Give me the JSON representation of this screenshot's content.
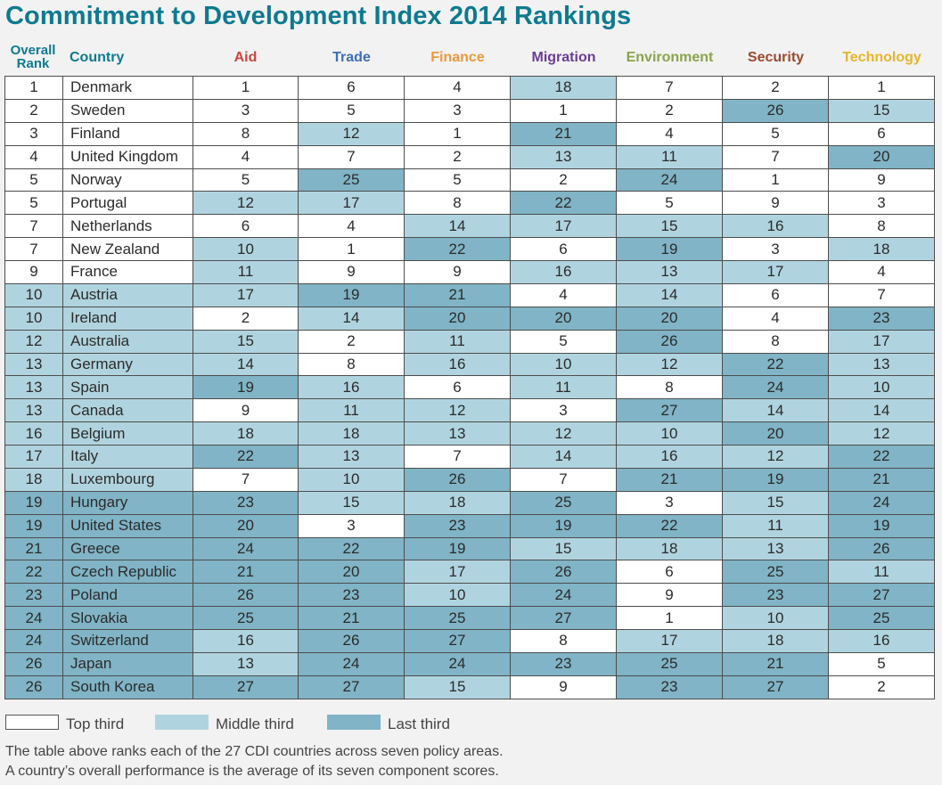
{
  "title": "Commitment to Development Index 2014 Rankings",
  "chart_data": {
    "type": "table",
    "title": "Commitment to Development Index 2014 Rankings",
    "headers": {
      "rank_line1": "Overall",
      "rank_line2": "Rank",
      "country": "Country",
      "components": [
        "Aid",
        "Trade",
        "Finance",
        "Migration",
        "Environment",
        "Security",
        "Technology"
      ]
    },
    "header_colors": [
      "#c8463a",
      "#3e6fb0",
      "#e89a3c",
      "#6a3d96",
      "#8aa44a",
      "#9a4a30",
      "#e5b52c"
    ],
    "tier_colors": {
      "top": "#ffffff",
      "middle": "#b0d4df",
      "last": "#80b4c6"
    },
    "rows": [
      {
        "rank": "1",
        "country": "Denmark",
        "scores": [
          1,
          6,
          4,
          18,
          7,
          2,
          1
        ]
      },
      {
        "rank": "2",
        "country": "Sweden",
        "scores": [
          3,
          5,
          3,
          1,
          2,
          26,
          15
        ]
      },
      {
        "rank": "3",
        "country": "Finland",
        "scores": [
          8,
          12,
          1,
          21,
          4,
          5,
          6
        ]
      },
      {
        "rank": "4",
        "country": "United Kingdom",
        "scores": [
          4,
          7,
          2,
          13,
          11,
          7,
          20
        ]
      },
      {
        "rank": "5",
        "country": "Norway",
        "scores": [
          5,
          25,
          5,
          2,
          24,
          1,
          9
        ]
      },
      {
        "rank": "5",
        "country": "Portugal",
        "scores": [
          12,
          17,
          8,
          22,
          5,
          9,
          3
        ]
      },
      {
        "rank": "7",
        "country": "Netherlands",
        "scores": [
          6,
          4,
          14,
          17,
          15,
          16,
          8
        ]
      },
      {
        "rank": "7",
        "country": "New Zealand",
        "scores": [
          10,
          1,
          22,
          6,
          19,
          3,
          18
        ]
      },
      {
        "rank": "9",
        "country": "France",
        "scores": [
          11,
          9,
          9,
          16,
          13,
          17,
          4
        ]
      },
      {
        "rank": "10",
        "country": "Austria",
        "scores": [
          17,
          19,
          21,
          4,
          14,
          6,
          7
        ]
      },
      {
        "rank": "10",
        "country": "Ireland",
        "scores": [
          2,
          14,
          20,
          20,
          20,
          4,
          23
        ]
      },
      {
        "rank": "12",
        "country": "Australia",
        "scores": [
          15,
          2,
          11,
          5,
          26,
          8,
          17
        ]
      },
      {
        "rank": "13",
        "country": "Germany",
        "scores": [
          14,
          8,
          16,
          10,
          12,
          22,
          13
        ]
      },
      {
        "rank": "13",
        "country": "Spain",
        "scores": [
          19,
          16,
          6,
          11,
          8,
          24,
          10
        ]
      },
      {
        "rank": "13",
        "country": "Canada",
        "scores": [
          9,
          11,
          12,
          3,
          27,
          14,
          14
        ]
      },
      {
        "rank": "16",
        "country": "Belgium",
        "scores": [
          18,
          18,
          13,
          12,
          10,
          20,
          12
        ]
      },
      {
        "rank": "17",
        "country": "Italy",
        "scores": [
          22,
          13,
          7,
          14,
          16,
          12,
          22
        ]
      },
      {
        "rank": "18",
        "country": "Luxembourg",
        "scores": [
          7,
          10,
          26,
          7,
          21,
          19,
          21
        ]
      },
      {
        "rank": "19",
        "country": "Hungary",
        "scores": [
          23,
          15,
          18,
          25,
          3,
          15,
          24
        ]
      },
      {
        "rank": "19",
        "country": "United States",
        "scores": [
          20,
          3,
          23,
          19,
          22,
          11,
          19
        ]
      },
      {
        "rank": "21",
        "country": "Greece",
        "scores": [
          24,
          22,
          19,
          15,
          18,
          13,
          26
        ]
      },
      {
        "rank": "22",
        "country": "Czech Republic",
        "scores": [
          21,
          20,
          17,
          26,
          6,
          25,
          11
        ]
      },
      {
        "rank": "23",
        "country": "Poland",
        "scores": [
          26,
          23,
          10,
          24,
          9,
          23,
          27
        ]
      },
      {
        "rank": "24",
        "country": "Slovakia",
        "scores": [
          25,
          21,
          25,
          27,
          1,
          10,
          25
        ]
      },
      {
        "rank": "24",
        "country": "Switzerland",
        "scores": [
          16,
          26,
          27,
          8,
          17,
          18,
          16
        ]
      },
      {
        "rank": "26",
        "country": "Japan",
        "scores": [
          13,
          24,
          24,
          23,
          25,
          21,
          5
        ]
      },
      {
        "rank": "26",
        "country": "South Korea",
        "scores": [
          27,
          27,
          15,
          9,
          23,
          27,
          2
        ]
      }
    ]
  },
  "legend": {
    "top": "Top third",
    "middle": "Middle third",
    "last": "Last third"
  },
  "notes": [
    "The table above ranks each of the 27 CDI countries across seven policy areas.",
    "A country’s overall performance is the average of its seven component scores."
  ]
}
